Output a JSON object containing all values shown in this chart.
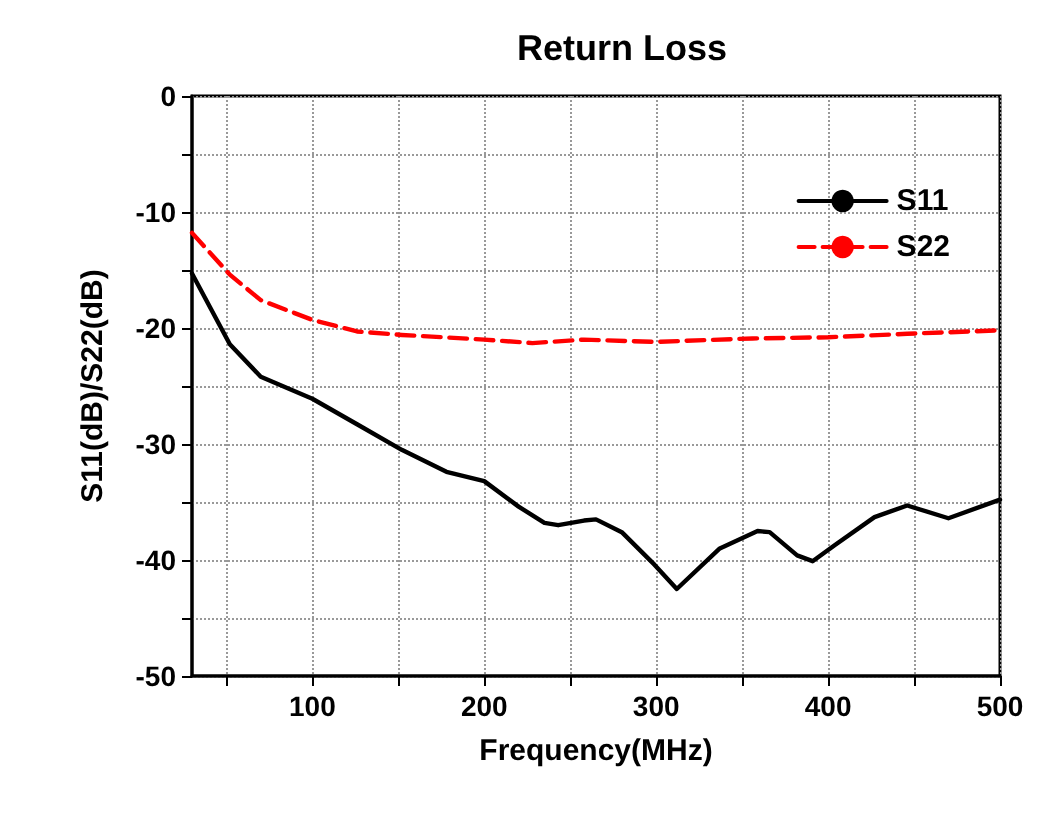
{
  "chart_data": {
    "type": "line",
    "title": "Return Loss",
    "xlabel": "Frequency(MHz)",
    "ylabel": "S11(dB)/S22(dB)",
    "xlim": [
      30,
      500
    ],
    "xticks": [
      {
        "value": 50,
        "label": null
      },
      100,
      {
        "value": 150,
        "label": null
      },
      200,
      {
        "value": 250,
        "label": null
      },
      300,
      {
        "value": 350,
        "label": null
      },
      400,
      {
        "value": 450,
        "label": null
      },
      500
    ],
    "ylim": [
      -50,
      0
    ],
    "yticks": [
      -50,
      {
        "value": -45,
        "label": null
      },
      -40,
      {
        "value": -35,
        "label": null
      },
      -30,
      {
        "value": -25,
        "label": null
      },
      -20,
      {
        "value": -15,
        "label": null
      },
      -10,
      {
        "value": -5,
        "label": null
      },
      0
    ],
    "grid": true,
    "legend": "top right",
    "series": [
      {
        "name": "S11",
        "color": "#000000",
        "line_style": "solid",
        "x": [
          30,
          52,
          70,
          100,
          126,
          152,
          178,
          200,
          220,
          235,
          243,
          258,
          265,
          280,
          299,
          312,
          337,
          359,
          366,
          382,
          391,
          404,
          427,
          446,
          470,
          500
        ],
        "values": [
          -15.3,
          -21.4,
          -24.2,
          -26.1,
          -28.3,
          -30.5,
          -32.4,
          -33.2,
          -35.4,
          -36.8,
          -37,
          -36.6,
          -36.5,
          -37.6,
          -40.4,
          -42.5,
          -39,
          -37.5,
          -37.6,
          -39.6,
          -40.1,
          -38.7,
          -36.3,
          -35.3,
          -36.4,
          -34.8
        ]
      },
      {
        "name": "S22",
        "color": "#ff0000",
        "line_style": "dashed",
        "x": [
          30,
          52,
          70,
          100,
          126,
          152,
          200,
          228,
          258,
          299,
          356,
          400,
          446,
          500
        ],
        "values": [
          -11.8,
          -15.4,
          -17.6,
          -19.3,
          -20.3,
          -20.6,
          -21,
          -21.3,
          -21,
          -21.2,
          -20.9,
          -20.8,
          -20.5,
          -20.2
        ]
      }
    ]
  }
}
